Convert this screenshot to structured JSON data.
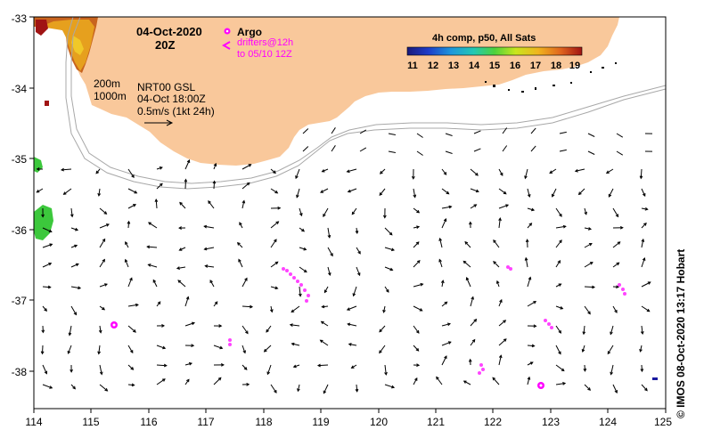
{
  "map": {
    "title_date": "04-Oct-2020",
    "title_time": "20Z",
    "argo_label": "Argo",
    "drifters_label": "drifters@12h",
    "drifters_range": "to 05/10 12Z",
    "isobath_200": "200m",
    "isobath_1000": "1000m",
    "product_name": "NRT00 GSL",
    "product_time": "04-Oct 18:00Z",
    "scale_label": "0.5m/s (1kt 24h)",
    "sst_title": "4h comp, p50, All Sats",
    "sst_ticks": [
      "11",
      "12",
      "13",
      "14",
      "15",
      "16",
      "17",
      "18",
      "19"
    ],
    "credit": "© IMOS 08-Oct-2020 13:17 Hobart",
    "x_ticks": [
      "114",
      "115",
      "116",
      "117",
      "118",
      "119",
      "120",
      "121",
      "122",
      "123",
      "124",
      "125"
    ],
    "y_ticks": [
      "-33",
      "-34",
      "-35",
      "-36",
      "-37",
      "-38"
    ]
  },
  "colors": {
    "land": "#f9c89b",
    "shelf": "#a8a8a8",
    "argo": "#ff00ff",
    "drifter": "#ff44ff"
  }
}
